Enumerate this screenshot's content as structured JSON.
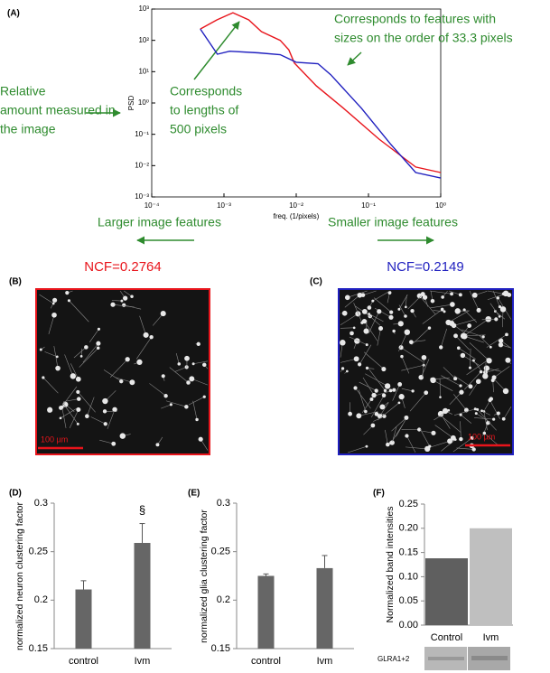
{
  "chart_data": [
    {
      "type": "line",
      "panel": "(A)",
      "xlabel": "freq. (1/pixels)",
      "ylabel": "PSD",
      "xscale": "log",
      "yscale": "log",
      "xlim": [
        0.0001,
        1
      ],
      "ylim": [
        0.001,
        1000
      ],
      "xticks": [
        {
          "value": 0.0001,
          "label": "10⁻⁴"
        },
        {
          "value": 0.001,
          "label": "10⁻³"
        },
        {
          "value": 0.01,
          "label": "10⁻²"
        },
        {
          "value": 0.1,
          "label": "10⁻¹"
        },
        {
          "value": 1,
          "label": "10⁰"
        }
      ],
      "yticks": [
        {
          "value": 0.001,
          "label": "10⁻³"
        },
        {
          "value": 0.01,
          "label": "10⁻²"
        },
        {
          "value": 0.1,
          "label": "10⁻¹"
        },
        {
          "value": 1,
          "label": "10⁰"
        },
        {
          "value": 10,
          "label": "10¹"
        },
        {
          "value": 100,
          "label": "10²"
        },
        {
          "value": 1000,
          "label": "10³"
        }
      ],
      "series": [
        {
          "color": "#e8141b",
          "x": [
            0.00047,
            0.0008,
            0.00133,
            0.0022,
            0.0033,
            0.006,
            0.0079,
            0.0094,
            0.019,
            0.045,
            0.14,
            0.45,
            1
          ],
          "values": [
            230,
            450,
            760,
            450,
            190,
            100,
            50,
            19,
            3.5,
            0.68,
            0.07,
            0.009,
            0.006
          ]
        },
        {
          "color": "#1f1fbf",
          "x": [
            0.00047,
            0.00081,
            0.0012,
            0.003,
            0.006,
            0.01,
            0.02,
            0.03,
            0.08,
            0.2,
            0.45,
            1
          ],
          "values": [
            230,
            36,
            45,
            40,
            35,
            20,
            18,
            8,
            0.68,
            0.05,
            0.006,
            0.004
          ]
        }
      ],
      "annotations": [
        {
          "lines": [
            "Corresponds to features with",
            "sizes on the order of 33.3 pixels"
          ]
        },
        {
          "lines": [
            "Corresponds",
            "to lengths of",
            "500 pixels"
          ]
        },
        {
          "lines": [
            "Relative",
            "amount measured in",
            "the image"
          ]
        },
        {
          "lines": [
            "Larger image features"
          ]
        },
        {
          "lines": [
            "Smaller image features"
          ]
        }
      ],
      "annotation_color": "#2e8b2e"
    },
    {
      "type": "bar",
      "panel": "(D)",
      "ylabel": "normalized neuron clustering factor",
      "categories": [
        "control",
        "Ivm"
      ],
      "values": [
        0.211,
        0.259
      ],
      "errors": [
        0.009,
        0.02
      ],
      "color": "#666666",
      "ylim": [
        0.15,
        0.3
      ],
      "yticks": [
        0.15,
        0.2,
        0.25,
        0.3
      ],
      "annotation": "§"
    },
    {
      "type": "bar",
      "panel": "(E)",
      "ylabel": "normalized glia clustering factor",
      "categories": [
        "control",
        "Ivm"
      ],
      "values": [
        0.225,
        0.233
      ],
      "errors": [
        0.002,
        0.013
      ],
      "color": "#666666",
      "ylim": [
        0.15,
        0.3
      ],
      "yticks": [
        0.15,
        0.2,
        0.25,
        0.3
      ]
    },
    {
      "type": "bar",
      "panel": "(F)",
      "ylabel": "Normalized band intensities",
      "categories": [
        "Control",
        "Ivm"
      ],
      "values": [
        0.138,
        0.2
      ],
      "colors": [
        "#5f5f5f",
        "#bfbfbf"
      ],
      "ylim": [
        0,
        0.25
      ],
      "yticks": [
        {
          "value": 0,
          "label": "0.00"
        },
        {
          "value": 0.05,
          "label": "0.05"
        },
        {
          "value": 0.1,
          "label": "0.10"
        },
        {
          "value": 0.15,
          "label": "0.15"
        },
        {
          "value": 0.2,
          "label": "0.20"
        },
        {
          "value": 0.25,
          "label": "0.25"
        }
      ],
      "blot_label": "GLRA1+2"
    }
  ],
  "images": [
    {
      "panel": "(B)",
      "title": "NCF=0.2764",
      "scale_label": "100 µm",
      "color": "#e8141b"
    },
    {
      "panel": "(C)",
      "title": "NCF=0.2149",
      "scale_label": "100 µm",
      "color": "#1f1fbf"
    }
  ]
}
